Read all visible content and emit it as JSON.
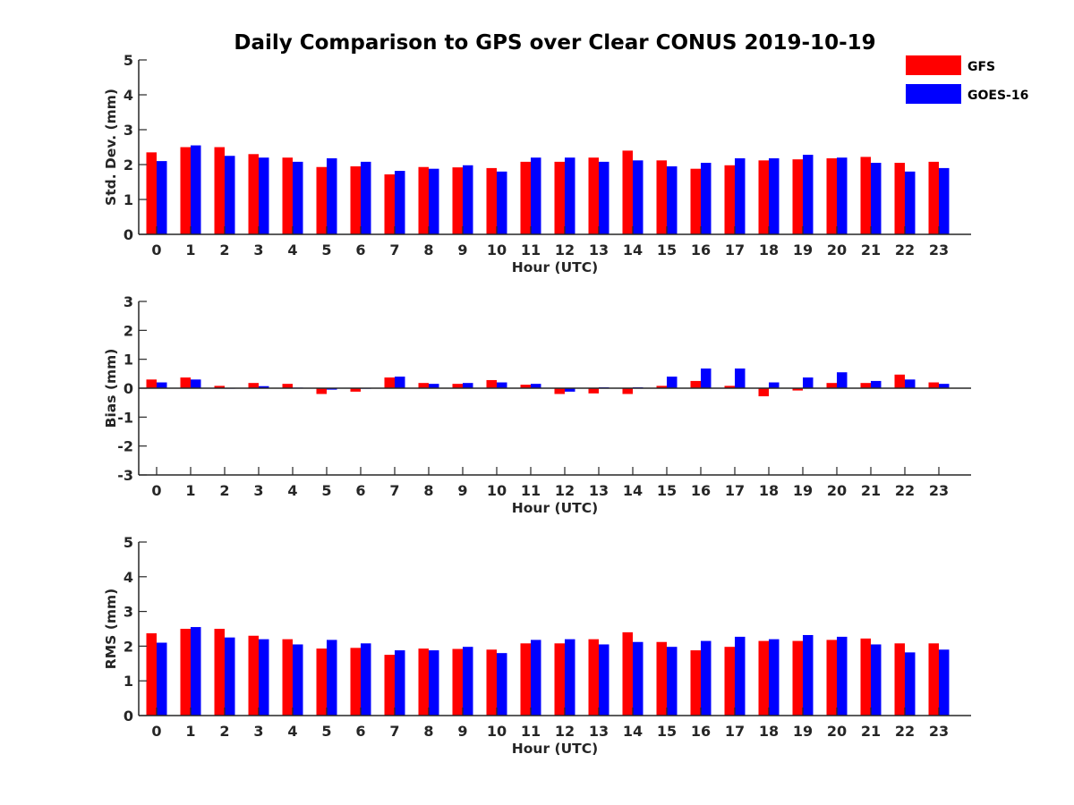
{
  "chart_data": {
    "type": "bar",
    "title": "Daily Comparison to GPS over Clear CONUS 2019-10-19",
    "legend_position": "top-right",
    "colors": {
      "GFS": "#ff0000",
      "GOES-16": "#0000ff"
    },
    "categories": [
      "0",
      "1",
      "2",
      "3",
      "4",
      "5",
      "6",
      "7",
      "8",
      "9",
      "10",
      "11",
      "12",
      "13",
      "14",
      "15",
      "16",
      "17",
      "18",
      "19",
      "20",
      "21",
      "22",
      "23"
    ],
    "panels": [
      {
        "id": "std",
        "xlabel": "Hour (UTC)",
        "ylabel": "Std. Dev. (mm)",
        "ylim": [
          0,
          5
        ],
        "yticks": [
          0,
          1,
          2,
          3,
          4,
          5
        ],
        "series": [
          {
            "name": "GFS",
            "values": [
              2.35,
              2.5,
              2.5,
              2.3,
              2.2,
              1.93,
              1.95,
              1.72,
              1.93,
              1.92,
              1.9,
              2.08,
              2.08,
              2.2,
              2.4,
              2.12,
              1.88,
              1.98,
              2.12,
              2.15,
              2.18,
              2.22,
              2.05,
              2.08
            ]
          },
          {
            "name": "GOES-16",
            "values": [
              2.1,
              2.55,
              2.25,
              2.2,
              2.08,
              2.18,
              2.08,
              1.82,
              1.88,
              1.98,
              1.8,
              2.2,
              2.2,
              2.08,
              2.12,
              1.95,
              2.05,
              2.18,
              2.18,
              2.28,
              2.2,
              2.05,
              1.8,
              1.9
            ]
          }
        ]
      },
      {
        "id": "bias",
        "xlabel": "Hour (UTC)",
        "ylabel": "Bias (mm)",
        "ylim": [
          -3,
          3
        ],
        "yticks": [
          -3,
          -2,
          -1,
          0,
          1,
          2,
          3
        ],
        "series": [
          {
            "name": "GFS",
            "values": [
              0.3,
              0.37,
              0.08,
              0.18,
              0.15,
              -0.2,
              -0.12,
              0.37,
              0.18,
              0.15,
              0.28,
              0.12,
              -0.2,
              -0.18,
              -0.2,
              0.08,
              0.25,
              0.08,
              -0.28,
              -0.08,
              0.18,
              0.18,
              0.47,
              0.2
            ]
          },
          {
            "name": "GOES-16",
            "values": [
              0.2,
              0.3,
              0.0,
              0.07,
              0.02,
              -0.05,
              -0.02,
              0.4,
              0.15,
              0.18,
              0.2,
              0.15,
              -0.12,
              0.03,
              0.03,
              0.4,
              0.68,
              0.68,
              0.2,
              0.37,
              0.55,
              0.25,
              0.3,
              0.15
            ]
          }
        ]
      },
      {
        "id": "rms",
        "xlabel": "Hour (UTC)",
        "ylabel": "RMS (mm)",
        "ylim": [
          0,
          5
        ],
        "yticks": [
          0,
          1,
          2,
          3,
          4,
          5
        ],
        "series": [
          {
            "name": "GFS",
            "values": [
              2.37,
              2.5,
              2.5,
              2.3,
              2.2,
              1.93,
              1.95,
              1.75,
              1.93,
              1.92,
              1.9,
              2.08,
              2.08,
              2.2,
              2.4,
              2.12,
              1.88,
              1.98,
              2.15,
              2.15,
              2.18,
              2.22,
              2.08,
              2.08
            ]
          },
          {
            "name": "GOES-16",
            "values": [
              2.1,
              2.55,
              2.25,
              2.2,
              2.05,
              2.18,
              2.08,
              1.88,
              1.88,
              1.98,
              1.8,
              2.18,
              2.2,
              2.05,
              2.12,
              1.98,
              2.15,
              2.27,
              2.2,
              2.32,
              2.27,
              2.05,
              1.82,
              1.9
            ]
          }
        ]
      }
    ]
  }
}
